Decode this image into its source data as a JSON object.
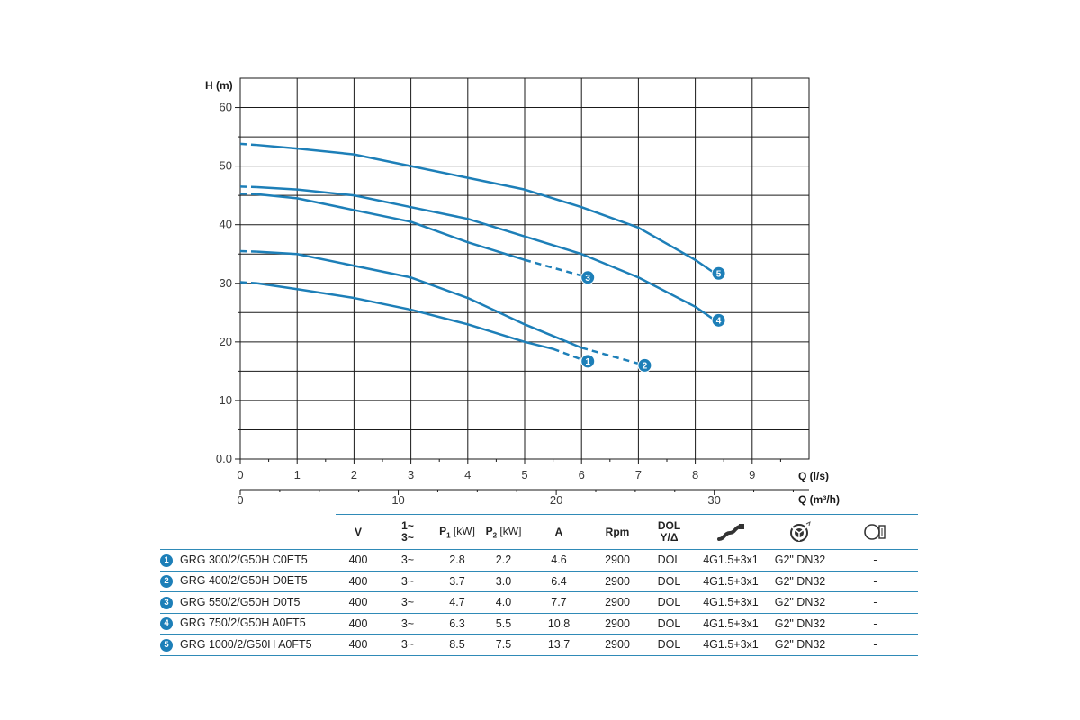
{
  "chart_data": {
    "type": "line",
    "y_axis": {
      "label": "H (m)",
      "range": [
        0,
        60
      ],
      "ticks": [
        "0.0",
        "10",
        "20",
        "30",
        "40",
        "50",
        "60"
      ]
    },
    "x_axis_primary": {
      "label": "Q (l/s)",
      "range": [
        0,
        10
      ],
      "ticks": [
        "0",
        "1",
        "2",
        "3",
        "4",
        "5",
        "6",
        "7",
        "8",
        "9"
      ]
    },
    "x_axis_secondary": {
      "label": "Q (m³/h)",
      "ticks": [
        "0",
        "10",
        "20",
        "30"
      ]
    },
    "grid": true,
    "line_color": "#1d7fb8",
    "series": [
      {
        "marker": "1",
        "points": [
          [
            0,
            30.2
          ],
          [
            0.3,
            30.0
          ],
          [
            1,
            29
          ],
          [
            2,
            27.5
          ],
          [
            3,
            25.5
          ],
          [
            4,
            23
          ],
          [
            5,
            20
          ],
          [
            5.5,
            18.8
          ],
          [
            6,
            17
          ]
        ]
      },
      {
        "marker": "2",
        "points": [
          [
            0,
            35.5
          ],
          [
            0.3,
            35.4
          ],
          [
            1,
            35
          ],
          [
            2,
            33
          ],
          [
            3,
            31
          ],
          [
            4,
            27.5
          ],
          [
            5,
            23
          ],
          [
            6,
            19
          ],
          [
            7,
            16.3
          ]
        ]
      },
      {
        "marker": "3",
        "points": [
          [
            0,
            45.3
          ],
          [
            0.3,
            45.2
          ],
          [
            1,
            44.5
          ],
          [
            2,
            42.5
          ],
          [
            3,
            40.5
          ],
          [
            4,
            37
          ],
          [
            5,
            34
          ],
          [
            6,
            31.3
          ]
        ]
      },
      {
        "marker": "4",
        "points": [
          [
            0,
            46.5
          ],
          [
            0.3,
            46.4
          ],
          [
            1,
            46
          ],
          [
            2,
            45
          ],
          [
            3,
            43
          ],
          [
            4,
            41
          ],
          [
            5,
            38
          ],
          [
            6,
            35
          ],
          [
            7,
            31
          ],
          [
            8,
            26
          ],
          [
            8.3,
            24
          ]
        ]
      },
      {
        "marker": "5",
        "points": [
          [
            0,
            53.8
          ],
          [
            0.3,
            53.6
          ],
          [
            1,
            53
          ],
          [
            2,
            52
          ],
          [
            3,
            50
          ],
          [
            4,
            48
          ],
          [
            5,
            46
          ],
          [
            6,
            43
          ],
          [
            7,
            39.5
          ],
          [
            8,
            34
          ],
          [
            8.3,
            32
          ]
        ]
      }
    ]
  },
  "table": {
    "headers": {
      "v": "V",
      "phase_top": "1~",
      "phase_bottom": "3~",
      "p1_sym": "P",
      "p1_sub": "1",
      "p1_unit": "[kW]",
      "p2_sym": "P",
      "p2_sub": "2",
      "p2_unit": "[kW]",
      "a": "A",
      "rpm": "Rpm",
      "start_top": "DOL",
      "start_bottom": "Y/Δ",
      "cable_icon": "cable-icon",
      "outlet_icon": "outlet-icon",
      "float_icon": "float-switch-icon"
    },
    "rows": [
      {
        "num": "1",
        "model": "GRG 300/2/G50H C0ET5",
        "v": "400",
        "phase": "3~",
        "p1": "2.8",
        "p2": "2.2",
        "a": "4.6",
        "rpm": "2900",
        "start": "DOL",
        "cable": "4G1.5+3x1",
        "outlet": "G2\" DN32",
        "float": "-"
      },
      {
        "num": "2",
        "model": "GRG 400/2/G50H D0ET5",
        "v": "400",
        "phase": "3~",
        "p1": "3.7",
        "p2": "3.0",
        "a": "6.4",
        "rpm": "2900",
        "start": "DOL",
        "cable": "4G1.5+3x1",
        "outlet": "G2\" DN32",
        "float": "-"
      },
      {
        "num": "3",
        "model": "GRG 550/2/G50H D0T5",
        "v": "400",
        "phase": "3~",
        "p1": "4.7",
        "p2": "4.0",
        "a": "7.7",
        "rpm": "2900",
        "start": "DOL",
        "cable": "4G1.5+3x1",
        "outlet": "G2\" DN32",
        "float": "-"
      },
      {
        "num": "4",
        "model": "GRG 750/2/G50H A0FT5",
        "v": "400",
        "phase": "3~",
        "p1": "6.3",
        "p2": "5.5",
        "a": "10.8",
        "rpm": "2900",
        "start": "DOL",
        "cable": "4G1.5+3x1",
        "outlet": "G2\" DN32",
        "float": "-"
      },
      {
        "num": "5",
        "model": "GRG 1000/2/G50H A0FT5",
        "v": "400",
        "phase": "3~",
        "p1": "8.5",
        "p2": "7.5",
        "a": "13.7",
        "rpm": "2900",
        "start": "DOL",
        "cable": "4G1.5+3x1",
        "outlet": "G2\" DN32",
        "float": "-"
      }
    ]
  }
}
